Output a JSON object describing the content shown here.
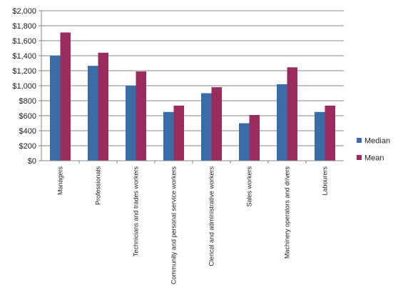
{
  "chart_data": {
    "type": "bar",
    "title": "",
    "xlabel": "",
    "ylabel": "",
    "ylim": [
      0,
      2000
    ],
    "yticks": [
      0,
      200,
      400,
      600,
      800,
      1000,
      1200,
      1400,
      1600,
      1800,
      2000
    ],
    "ytick_labels": [
      "$0",
      "$200",
      "$400",
      "$600",
      "$800",
      "$1,000",
      "$1,200",
      "$1,400",
      "$1,600",
      "$1,800",
      "$2,000"
    ],
    "categories": [
      "Managers",
      "Professionals",
      "Technicians and trades workers",
      "Community and personal service workers",
      "Clerical and administrative workers",
      "Sales workers",
      "Machinery operators and drivers",
      "Labourers"
    ],
    "series": [
      {
        "name": "Median",
        "color": "#3A6DA8",
        "values": [
          1400,
          1265,
          1000,
          650,
          900,
          500,
          1020,
          650
        ]
      },
      {
        "name": "Mean",
        "color": "#9B2D5E",
        "values": [
          1710,
          1440,
          1190,
          735,
          980,
          610,
          1245,
          735
        ]
      }
    ],
    "grid": true,
    "legend_position": "right"
  }
}
